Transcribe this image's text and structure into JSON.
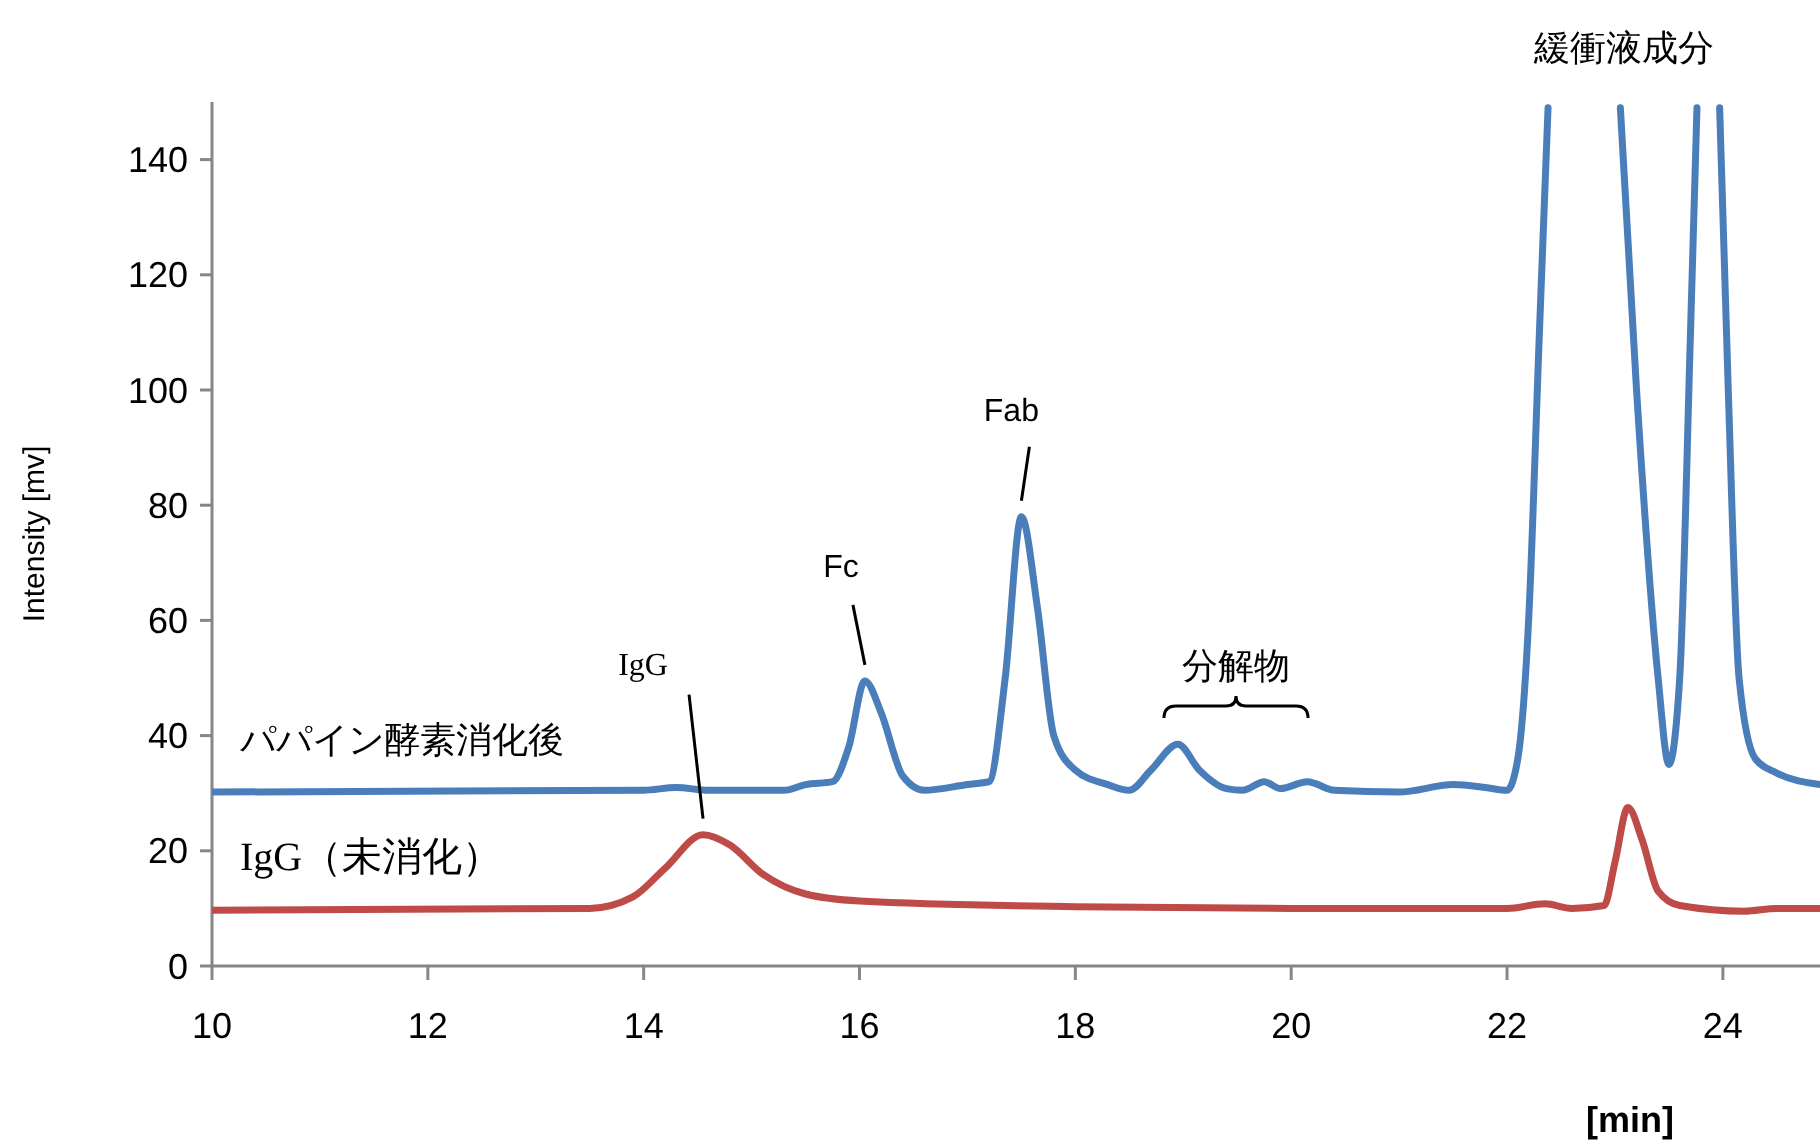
{
  "chart_data": {
    "type": "line",
    "xlabel": "[min]",
    "ylabel": "Intensity [mv]",
    "xlim": [
      10,
      24.9
    ],
    "ylim": [
      0,
      150
    ],
    "xticks": [
      10,
      12,
      14,
      16,
      18,
      20,
      22,
      24
    ],
    "yticks": [
      0,
      20,
      40,
      60,
      80,
      100,
      120,
      140
    ],
    "grid": false,
    "legend": false,
    "marker": "none",
    "line_style": "solid",
    "series": [
      {
        "name": "パパイン酵素消化後",
        "color": "#4a7ebb",
        "x": [
          10,
          14,
          14.3,
          14.6,
          15.3,
          15.5,
          15.75,
          15.9,
          16.05,
          16.2,
          16.4,
          16.6,
          17,
          17.2,
          17.35,
          17.5,
          17.65,
          17.8,
          18,
          18.3,
          18.5,
          18.7,
          18.95,
          19.15,
          19.4,
          19.55,
          19.75,
          19.9,
          20.15,
          20.4,
          21,
          21.5,
          21.8,
          22,
          22.1,
          22.2,
          22.3,
          22.38,
          22.7,
          23.05,
          23.2,
          23.4,
          23.5,
          23.6,
          23.7,
          23.76,
          23.85,
          23.97,
          24.05,
          24.15,
          24.3,
          24.5,
          24.9
        ],
        "values": [
          30.2,
          30.5,
          31,
          30.5,
          30.5,
          31.5,
          32,
          38,
          49.5,
          44,
          33,
          30.5,
          31.5,
          32,
          50,
          78,
          62,
          40,
          34,
          31.5,
          30.5,
          34,
          38.5,
          34,
          30.8,
          30.5,
          32,
          30.8,
          32,
          30.5,
          30.2,
          31.5,
          31,
          30.5,
          36,
          60,
          110,
          149,
          null,
          149,
          100,
          50,
          35,
          50,
          110,
          149,
          null,
          149,
          100,
          50,
          36,
          33.5,
          31.5
        ]
      },
      {
        "name": "IgG（未消化）",
        "color": "#be4b48",
        "x": [
          10,
          13.5,
          13.9,
          14.2,
          14.55,
          14.8,
          15.1,
          15.5,
          16,
          18,
          20,
          22,
          22.35,
          22.6,
          22.9,
          23,
          23.12,
          23.25,
          23.4,
          23.6,
          24.2,
          24.5,
          24.9
        ],
        "values": [
          9.7,
          10,
          12,
          17,
          22.8,
          21,
          16,
          12.5,
          11.3,
          10.3,
          10,
          10,
          10.8,
          10,
          10.5,
          18,
          27.5,
          22,
          13,
          10.5,
          9.5,
          10,
          10
        ]
      }
    ],
    "annotations": [
      {
        "text": "IgG",
        "x": 14.55,
        "y": 22.8
      },
      {
        "text": "Fc",
        "x": 16.05,
        "y": 49.5
      },
      {
        "text": "Fab",
        "x": 17.5,
        "y": 78
      },
      "分解物",
      "緩衝液成分"
    ]
  }
}
